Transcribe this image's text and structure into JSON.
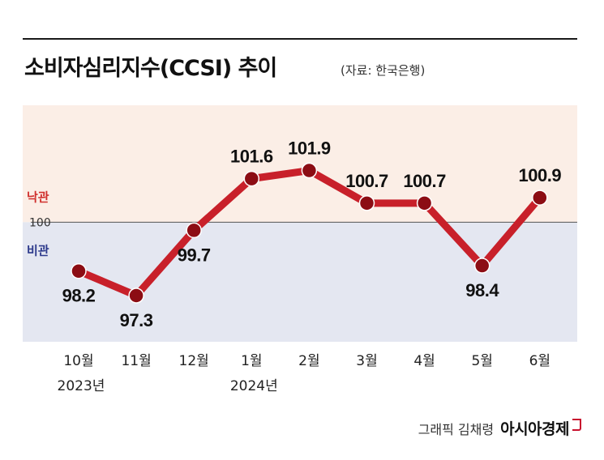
{
  "header": {
    "title": "소비자심리지수(CCSI) 추이",
    "source": "(자료: 한국은행)"
  },
  "credit": {
    "author": "그래픽 김채령",
    "brand": "아시아경제"
  },
  "colors": {
    "upper_band": "#fbeee6",
    "lower_band": "#e4e7f1",
    "line": "#c8202a",
    "marker": "#8c0d14",
    "optimism_label": "#d0302d",
    "pessimism_label": "#2d3a8c"
  },
  "chart_data": {
    "type": "line",
    "categories": [
      "10월",
      "11월",
      "12월",
      "1월",
      "2월",
      "3월",
      "4월",
      "5월",
      "6월"
    ],
    "category_years": [
      "2023년",
      "",
      "",
      "2024년",
      "",
      "",
      "",
      "",
      ""
    ],
    "values": [
      98.2,
      97.3,
      99.7,
      101.6,
      101.9,
      100.7,
      100.7,
      98.4,
      100.9
    ],
    "value_labels": [
      "98.2",
      "97.3",
      "99.7",
      "101.6",
      "101.9",
      "100.7",
      "100.7",
      "98.4",
      "100.9"
    ],
    "baseline": 100,
    "baseline_label": "100",
    "band_labels": {
      "above": "낙관",
      "below": "비관"
    },
    "title": "소비자심리지수(CCSI) 추이",
    "xlabel": "",
    "ylabel": "",
    "ylim": [
      95.6,
      104.3
    ],
    "grid": false,
    "legend": "none"
  }
}
